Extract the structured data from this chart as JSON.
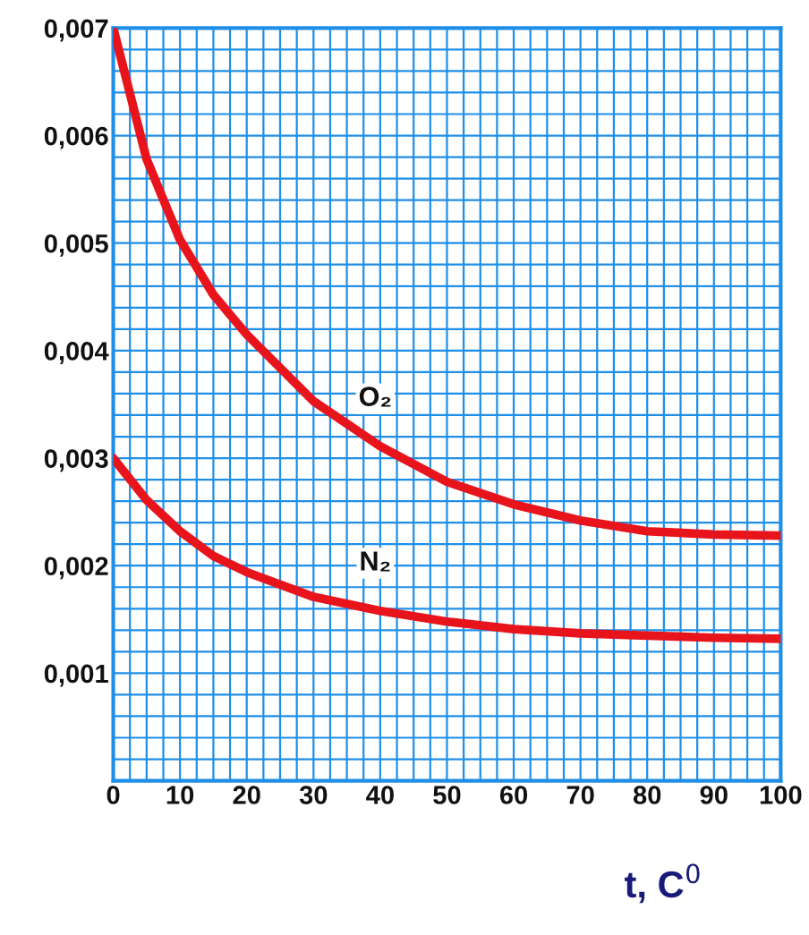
{
  "chart_data": {
    "type": "line",
    "xlabel": "t, C$^{0}$",
    "x": [
      0,
      5,
      10,
      15,
      20,
      30,
      40,
      50,
      60,
      70,
      80,
      90,
      100
    ],
    "series": [
      {
        "name": "O₂",
        "color": "#e8141c",
        "values": [
          0.007,
          0.00578,
          0.00503,
          0.00452,
          0.00415,
          0.00353,
          0.00311,
          0.00278,
          0.00257,
          0.00242,
          0.00232,
          0.00229,
          0.00228
        ]
      },
      {
        "name": "N₂",
        "color": "#e8141c",
        "values": [
          0.003,
          0.00261,
          0.00232,
          0.00209,
          0.00194,
          0.00171,
          0.00158,
          0.00148,
          0.00141,
          0.00137,
          0.00135,
          0.00133,
          0.00132
        ]
      }
    ],
    "xlim": [
      0,
      100
    ],
    "ylim": [
      0,
      0.007
    ],
    "xticks": [
      0,
      10,
      20,
      30,
      40,
      50,
      60,
      70,
      80,
      90,
      100
    ],
    "yticks": [
      {
        "value": 0.001,
        "label": "0,001"
      },
      {
        "value": 0.002,
        "label": "0,002"
      },
      {
        "value": 0.003,
        "label": "0,003"
      },
      {
        "value": 0.004,
        "label": "0,004"
      },
      {
        "value": 0.005,
        "label": "0,005"
      },
      {
        "value": 0.006,
        "label": "0,006"
      },
      {
        "value": 0.007,
        "label": "0,007"
      }
    ],
    "grid": true,
    "marker": "none",
    "line_style": "solid"
  }
}
